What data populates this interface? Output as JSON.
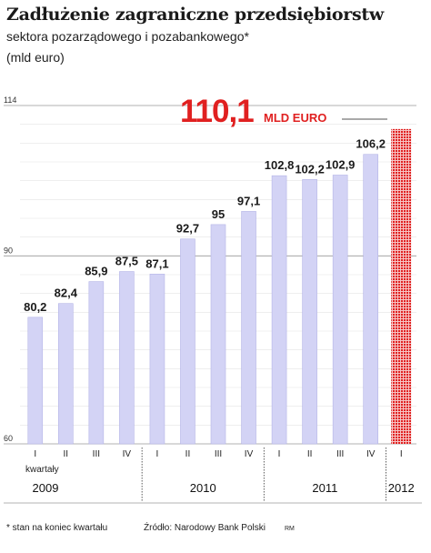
{
  "title": "Zadłużenie zagraniczne przedsiębiorstw",
  "subtitle": "sektora pozarządowego i pozabankowego*",
  "unit": "(mld euro)",
  "footnote": "* stan na koniec kwartału",
  "source": "Źródło: Narodowy Bank Polski",
  "initials": "RM",
  "axis_label_quarters": "kwartały",
  "highlight": {
    "value": "110,1",
    "unit": "MLD EURO",
    "color": "#e02020"
  },
  "colors": {
    "bar": "#d3d3f5",
    "bar_stroke": "#b5b5e6",
    "highlight": "#e02020",
    "grid": "#e4e4e4"
  },
  "chart_data": {
    "type": "bar",
    "ylim": [
      60,
      114
    ],
    "yticks": [
      60,
      90,
      114
    ],
    "grid": true,
    "categories": [
      "I",
      "II",
      "III",
      "IV",
      "I",
      "II",
      "III",
      "IV",
      "I",
      "II",
      "III",
      "IV",
      "I"
    ],
    "years": [
      {
        "label": "2009",
        "start": 0,
        "end": 3
      },
      {
        "label": "2010",
        "start": 4,
        "end": 7
      },
      {
        "label": "2011",
        "start": 8,
        "end": 11
      },
      {
        "label": "2012",
        "start": 12,
        "end": 12
      }
    ],
    "values": [
      80.2,
      82.4,
      85.9,
      87.5,
      87.1,
      92.7,
      95,
      97.1,
      102.8,
      102.2,
      102.9,
      106.2,
      110.1
    ],
    "value_labels": [
      "80,2",
      "82,4",
      "85,9",
      "87,5",
      "87,1",
      "92,7",
      "95",
      "97,1",
      "102,8",
      "102,2",
      "102,9",
      "106,2",
      ""
    ],
    "highlight_index": 12
  }
}
